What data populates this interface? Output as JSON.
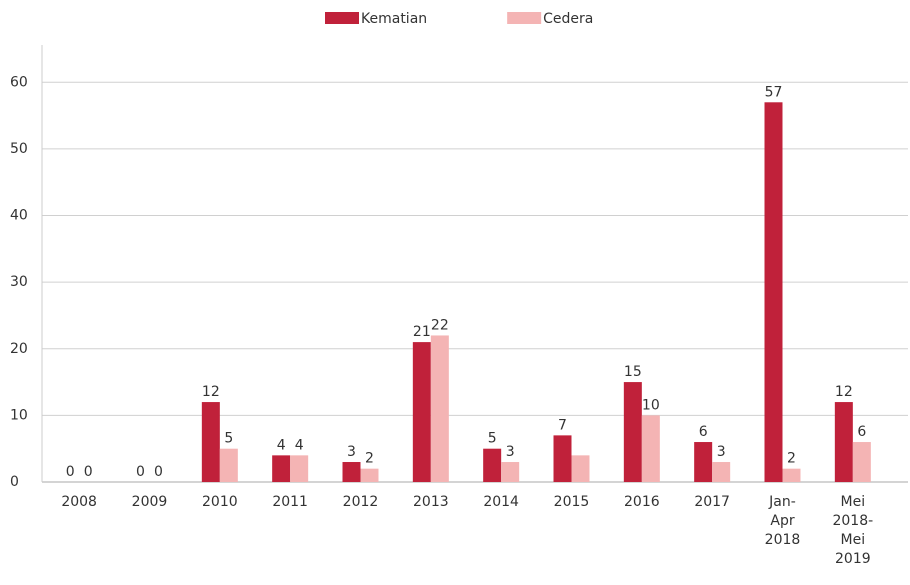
{
  "chart_data": {
    "type": "bar",
    "categories": [
      "2008",
      "2009",
      "2010",
      "2011",
      "2012",
      "2013",
      "2014",
      "2015",
      "2016",
      "2017",
      "Jan-Apr 2018",
      "Mei 2018-Mei 2019"
    ],
    "series": [
      {
        "name": "Kematian",
        "color": "#c0213a",
        "values": [
          0,
          0,
          12,
          4,
          3,
          21,
          5,
          7,
          15,
          6,
          57,
          12
        ]
      },
      {
        "name": "Cedera",
        "color": "#f4b4b4",
        "values": [
          0,
          0,
          5,
          4,
          2,
          22,
          3,
          4,
          10,
          3,
          2,
          6
        ],
        "value_labels": [
          "0",
          "0",
          "5",
          "4",
          "2",
          "22",
          "3",
          null,
          "10",
          "3",
          "2",
          "6"
        ]
      }
    ],
    "ylim": [
      0,
      65
    ],
    "yticks": [
      0,
      10,
      20,
      30,
      40,
      50,
      60
    ],
    "grid": true,
    "legend": "top"
  }
}
